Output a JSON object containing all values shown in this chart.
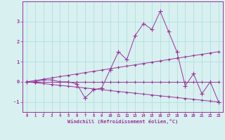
{
  "x": [
    0,
    1,
    2,
    3,
    4,
    5,
    6,
    7,
    8,
    9,
    10,
    11,
    12,
    13,
    14,
    15,
    16,
    17,
    18,
    19,
    20,
    21,
    22,
    23
  ],
  "y_main": [
    0.0,
    0.0,
    0.1,
    0.1,
    0.0,
    0.0,
    -0.1,
    -0.8,
    -0.4,
    -0.3,
    0.6,
    1.5,
    1.1,
    2.3,
    2.9,
    2.6,
    3.5,
    2.5,
    1.5,
    -0.2,
    0.4,
    -0.6,
    0.0,
    -1.0
  ],
  "y_trend1": [
    0.0,
    0.065,
    0.13,
    0.196,
    0.261,
    0.326,
    0.391,
    0.457,
    0.522,
    0.587,
    0.652,
    0.717,
    0.783,
    0.848,
    0.913,
    0.978,
    1.043,
    1.109,
    1.174,
    1.239,
    1.304,
    1.37,
    1.435,
    1.5
  ],
  "y_trend2": [
    0.0,
    -0.043,
    -0.087,
    -0.13,
    -0.174,
    -0.217,
    -0.261,
    -0.304,
    -0.348,
    -0.391,
    -0.435,
    -0.478,
    -0.522,
    -0.565,
    -0.609,
    -0.652,
    -0.696,
    -0.739,
    -0.783,
    -0.826,
    -0.87,
    -0.913,
    -0.957,
    -1.0
  ],
  "y_flat": [
    0.0,
    0.0,
    0.0,
    0.0,
    0.0,
    0.0,
    0.0,
    0.0,
    0.0,
    0.0,
    0.0,
    0.0,
    0.0,
    0.0,
    0.0,
    0.0,
    0.0,
    0.0,
    0.0,
    0.0,
    0.0,
    0.0,
    0.0,
    0.0
  ],
  "line_color": "#993399",
  "bg_color": "#d8f0f0",
  "grid_color": "#aadddd",
  "xlabel": "Windchill (Refroidissement éolien,°C)",
  "xlim": [
    -0.5,
    23.5
  ],
  "ylim": [
    -1.5,
    4.0
  ],
  "yticks": [
    -1,
    0,
    1,
    2,
    3
  ],
  "xticks": [
    0,
    1,
    2,
    3,
    4,
    5,
    6,
    7,
    8,
    9,
    10,
    11,
    12,
    13,
    14,
    15,
    16,
    17,
    18,
    19,
    20,
    21,
    22,
    23
  ]
}
